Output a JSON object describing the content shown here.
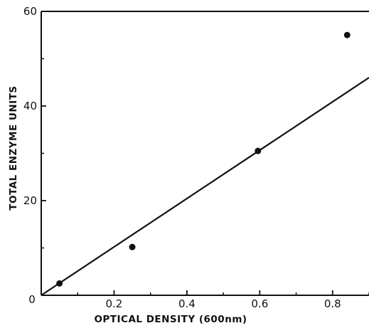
{
  "chart_data": {
    "type": "scatter",
    "title": "",
    "xlabel": "OPTICAL DENSITY (600nm)",
    "ylabel": "TOTAL ENZYME UNITS",
    "xlim": [
      0,
      0.9
    ],
    "ylim": [
      0,
      60
    ],
    "x_ticks": [
      0.2,
      0.4,
      0.6,
      0.8
    ],
    "x_tick_labels": [
      "0.2",
      "0.4",
      "0.6",
      "0.8"
    ],
    "y_ticks": [
      20,
      40,
      60
    ],
    "y_tick_labels": [
      "20",
      "40",
      "60"
    ],
    "origin_label": "0",
    "grid": false,
    "series": [
      {
        "points": [
          {
            "x": 0.05,
            "y": 2.5
          },
          {
            "x": 0.25,
            "y": 10.2
          },
          {
            "x": 0.595,
            "y": 30.5
          },
          {
            "x": 0.84,
            "y": 55.0
          }
        ]
      }
    ],
    "fit_line": {
      "x": [
        0,
        0.9
      ],
      "y": [
        0,
        46
      ]
    }
  }
}
